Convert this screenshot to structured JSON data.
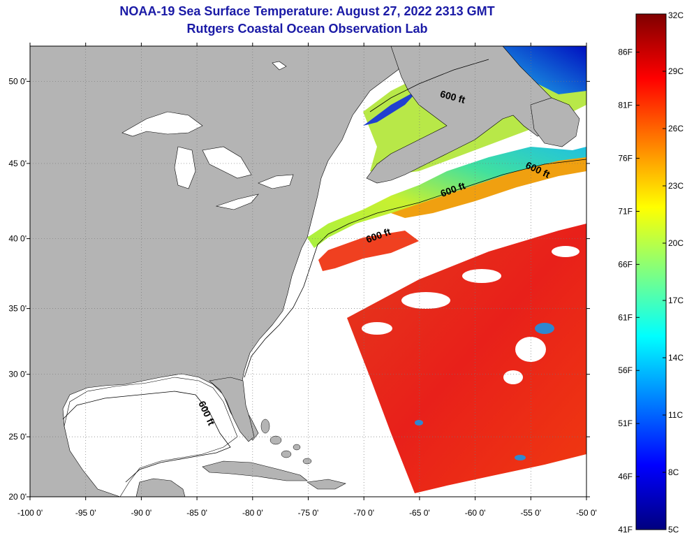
{
  "title_line1": "NOAA-19 Sea Surface Temperature:  August 27, 2022 2313 GMT",
  "title_line2": "Rutgers Coastal Ocean Observation Lab",
  "map": {
    "lon_range": [
      -100,
      -50
    ],
    "lat_range": [
      20,
      52
    ],
    "lon_ticks": [
      {
        "value": -100,
        "label": "-100 0'"
      },
      {
        "value": -95,
        "label": "-95 0'"
      },
      {
        "value": -90,
        "label": "-90 0'"
      },
      {
        "value": -85,
        "label": "-85 0'"
      },
      {
        "value": -80,
        "label": "-80 0'"
      },
      {
        "value": -75,
        "label": "-75 0'"
      },
      {
        "value": -70,
        "label": "-70 0'"
      },
      {
        "value": -65,
        "label": "-65 0'"
      },
      {
        "value": -60,
        "label": "-60 0'"
      },
      {
        "value": -55,
        "label": "-55 0'"
      },
      {
        "value": -50,
        "label": "-50 0'"
      }
    ],
    "lat_ticks": [
      {
        "value": 20,
        "label": "20 0'"
      },
      {
        "value": 25,
        "label": "25 0'"
      },
      {
        "value": 30,
        "label": "30 0'"
      },
      {
        "value": 35,
        "label": "35 0'"
      },
      {
        "value": 40,
        "label": "40 0'"
      },
      {
        "value": 45,
        "label": "45 0'"
      },
      {
        "value": 50,
        "label": "50 0'"
      }
    ],
    "grid": "dotted",
    "contour_label": "600 ft",
    "contour_label_positions": [
      {
        "lon": -62.1,
        "lat": 48.9,
        "rotation": 15
      },
      {
        "lon": -54.5,
        "lat": 44.4,
        "rotation": 25
      },
      {
        "lon": -61.9,
        "lat": 43.1,
        "rotation": -20
      },
      {
        "lon": -68.6,
        "lat": 40.0,
        "rotation": -20
      },
      {
        "lon": -84.4,
        "lat": 26.8,
        "rotation": 65
      }
    ],
    "colors": {
      "land": "#b4b4b4",
      "no_data": "#ffffff",
      "warm_water": "#e82a1a"
    }
  },
  "colorbar": {
    "celsius_labels": [
      {
        "value": 32,
        "label": "32C"
      },
      {
        "value": 29,
        "label": "29C"
      },
      {
        "value": 26,
        "label": "26C"
      },
      {
        "value": 23,
        "label": "23C"
      },
      {
        "value": 20,
        "label": "20C"
      },
      {
        "value": 17,
        "label": "17C"
      },
      {
        "value": 14,
        "label": "14C"
      },
      {
        "value": 11,
        "label": "11C"
      },
      {
        "value": 8,
        "label": "8C"
      },
      {
        "value": 5,
        "label": "5C"
      }
    ],
    "fahrenheit_labels": [
      {
        "value": 86,
        "label": "86F"
      },
      {
        "value": 81,
        "label": "81F"
      },
      {
        "value": 76,
        "label": "76F"
      },
      {
        "value": 71,
        "label": "71F"
      },
      {
        "value": 66,
        "label": "66F"
      },
      {
        "value": 61,
        "label": "61F"
      },
      {
        "value": 56,
        "label": "56F"
      },
      {
        "value": 51,
        "label": "51F"
      },
      {
        "value": 46,
        "label": "46F"
      },
      {
        "value": 41,
        "label": "41F"
      }
    ],
    "range_c": [
      5,
      32
    ],
    "stops": [
      "#00007f",
      "#0000ff",
      "#0080ff",
      "#00ffff",
      "#80ff80",
      "#ffff00",
      "#ff8000",
      "#ff0000",
      "#7f0000"
    ]
  }
}
